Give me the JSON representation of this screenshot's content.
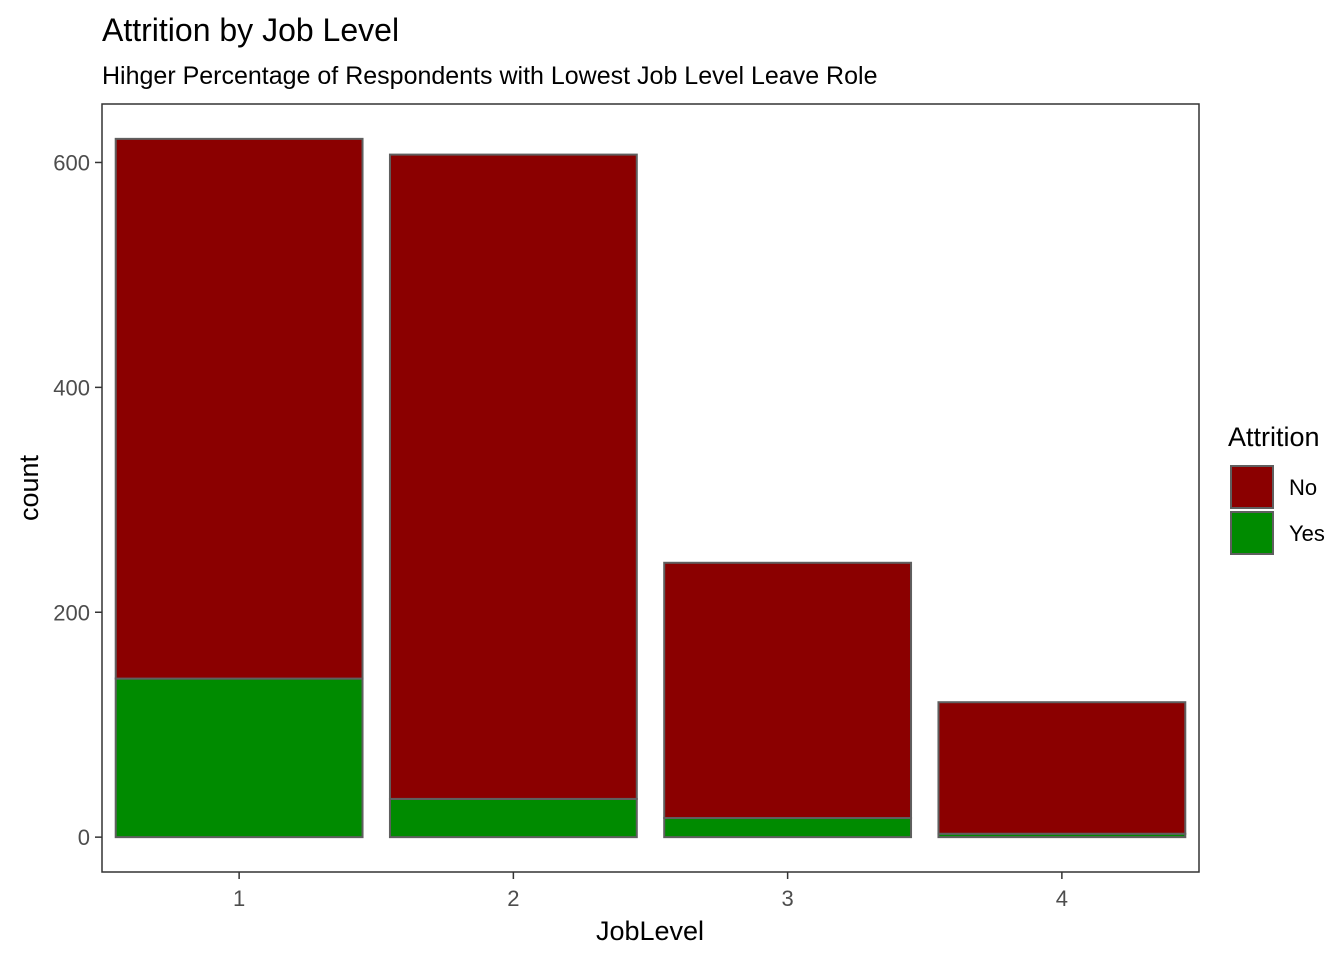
{
  "chart_data": {
    "type": "bar",
    "stacked": true,
    "title": "Attrition by Job Level",
    "subtitle": "Hihger Percentage of Respondents with Lowest Job Level Leave Role",
    "xlabel": "JobLevel",
    "ylabel": "count",
    "categories": [
      "1",
      "2",
      "3",
      "4"
    ],
    "series": [
      {
        "name": "No",
        "color": "#8B0000",
        "values": [
          480,
          573,
          227,
          117
        ]
      },
      {
        "name": "Yes",
        "color": "#008B00",
        "values": [
          141,
          34,
          17,
          3
        ]
      }
    ],
    "yticks": [
      0,
      200,
      400,
      600
    ],
    "ylim": [
      -31,
      652
    ],
    "legend": {
      "title": "Attrition",
      "position": "right"
    },
    "grid": false,
    "theme": "bw-no-grid"
  }
}
